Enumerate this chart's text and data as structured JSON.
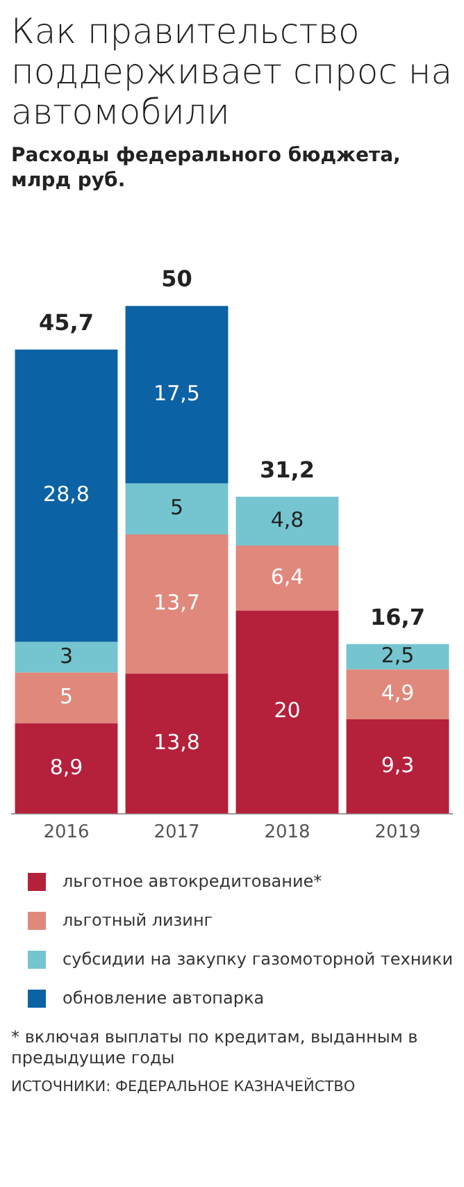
{
  "chart_data": {
    "type": "bar",
    "title": "Как правительство поддерживает спрос на автомобили",
    "subtitle": "Расходы федерального бюджета, млрд руб.",
    "categories": [
      "2016",
      "2017",
      "2018",
      "2019"
    ],
    "stacked": true,
    "legend": "bottom",
    "grid": false,
    "series": [
      {
        "name": "льготное автокредитование*",
        "color": "#b5203b",
        "values": [
          8.9,
          13.8,
          20,
          9.3
        ],
        "value_labels": [
          "8,9",
          "13,8",
          "20",
          "9,3"
        ]
      },
      {
        "name": "льготный лизинг",
        "color": "#e0887c",
        "values": [
          5,
          13.7,
          6.4,
          4.9
        ],
        "value_labels": [
          "5",
          "13,7",
          "6,4",
          "4,9"
        ]
      },
      {
        "name": "субсидии на закупку газомоторной техники",
        "color": "#74c5cf",
        "values": [
          3,
          5,
          4.8,
          2.5
        ],
        "value_labels": [
          "3",
          "5",
          "4,8",
          "2,5"
        ]
      },
      {
        "name": "обновление автопарка",
        "color": "#0b62a4",
        "values": [
          28.8,
          17.5,
          null,
          null
        ],
        "value_labels": [
          "28,8",
          "17,5",
          null,
          null
        ]
      }
    ],
    "totals": [
      "45,7",
      "50",
      "31,2",
      "16,7"
    ],
    "annotations": [
      "* включая выплаты по кредитам, выданным в предыдущие годы",
      "ИСТОЧНИКИ: ФЕДЕРАЛЬНОЕ КАЗНАЧЕЙСТВО"
    ]
  }
}
